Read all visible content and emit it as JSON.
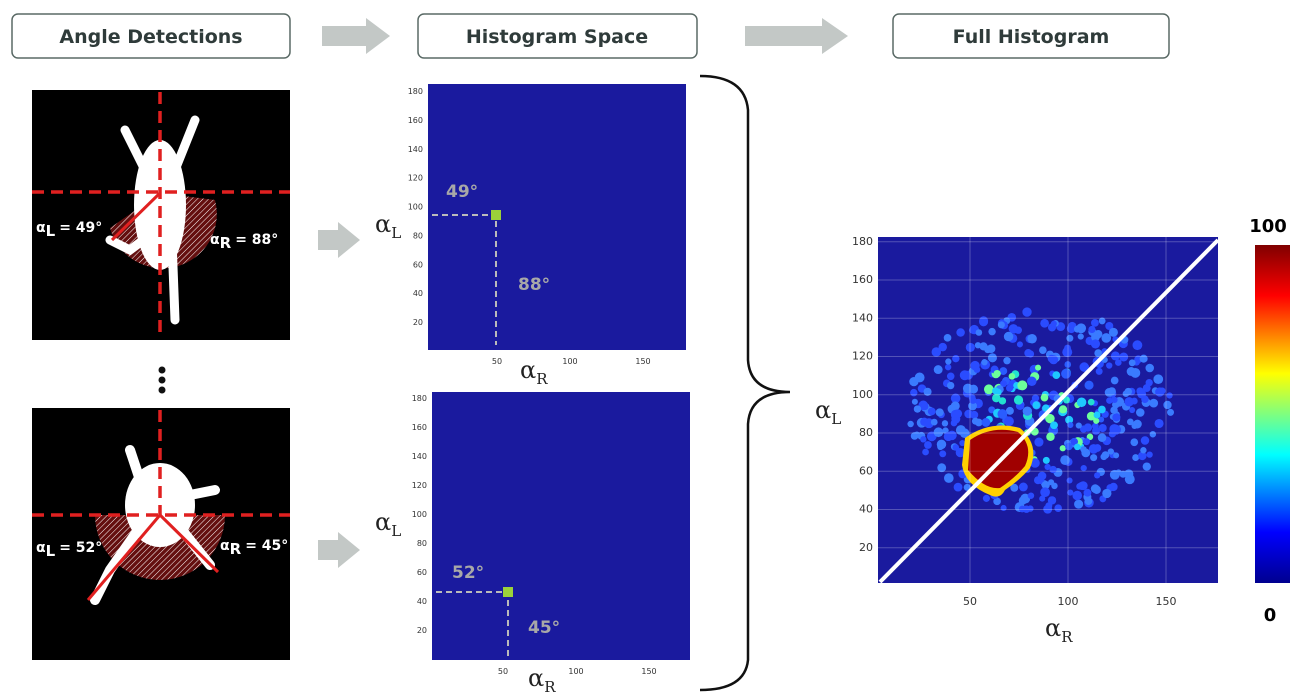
{
  "steps": [
    "Angle Detections",
    "Histogram Space",
    "Full Histogram"
  ],
  "detections": [
    {
      "left": {
        "symbol": "α",
        "sub": "L",
        "value": "= 49°"
      },
      "right": {
        "symbol": "α",
        "sub": "R",
        "value": "= 88°"
      }
    },
    {
      "left": {
        "symbol": "α",
        "sub": "L",
        "value": "= 52°"
      },
      "right": {
        "symbol": "α",
        "sub": "R",
        "value": "= 45°"
      }
    }
  ],
  "histograms": [
    {
      "y_label": {
        "symbol": "α",
        "sub": "L"
      },
      "x_label": {
        "symbol": "α",
        "sub": "R"
      },
      "yticks": [
        20,
        40,
        60,
        80,
        100,
        120,
        140,
        160,
        180
      ],
      "xticks": [
        50,
        100,
        150
      ],
      "point_labels": [
        "49°",
        "88°"
      ]
    },
    {
      "y_label": {
        "symbol": "α",
        "sub": "L"
      },
      "x_label": {
        "symbol": "α",
        "sub": "R"
      },
      "yticks": [
        20,
        40,
        60,
        80,
        100,
        120,
        140,
        160,
        180
      ],
      "xticks": [
        50,
        100,
        150
      ],
      "point_labels": [
        "52°",
        "45°"
      ]
    }
  ],
  "full_histogram": {
    "y_label": {
      "symbol": "α",
      "sub": "L"
    },
    "x_label": {
      "symbol": "α",
      "sub": "R"
    },
    "yticks": [
      20,
      40,
      60,
      80,
      100,
      120,
      140,
      160,
      180
    ],
    "xticks": [
      50,
      100,
      150
    ],
    "colorbar_labels": [
      "100",
      "0"
    ]
  }
}
